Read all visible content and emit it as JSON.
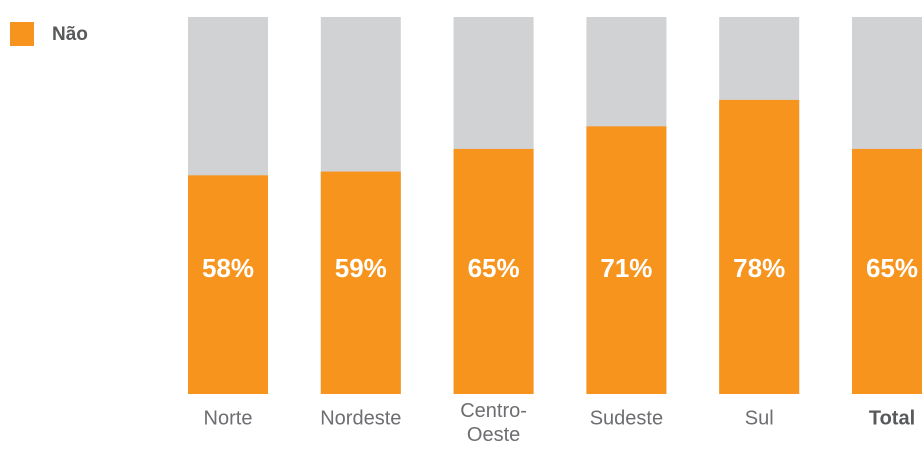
{
  "chart_data": {
    "type": "bar",
    "categories": [
      "Norte",
      "Nordeste",
      "Centro-Oeste",
      "Sudeste",
      "Sul",
      "Total"
    ],
    "series": [
      {
        "name": "Não",
        "color": "#f7941d",
        "values": [
          58,
          59,
          65,
          71,
          78,
          65
        ],
        "value_labels": [
          "58%",
          "59%",
          "65%",
          "71%",
          "78%",
          "65%"
        ]
      }
    ],
    "ylim": [
      0,
      100
    ],
    "remainder_color": "#d1d2d4"
  }
}
